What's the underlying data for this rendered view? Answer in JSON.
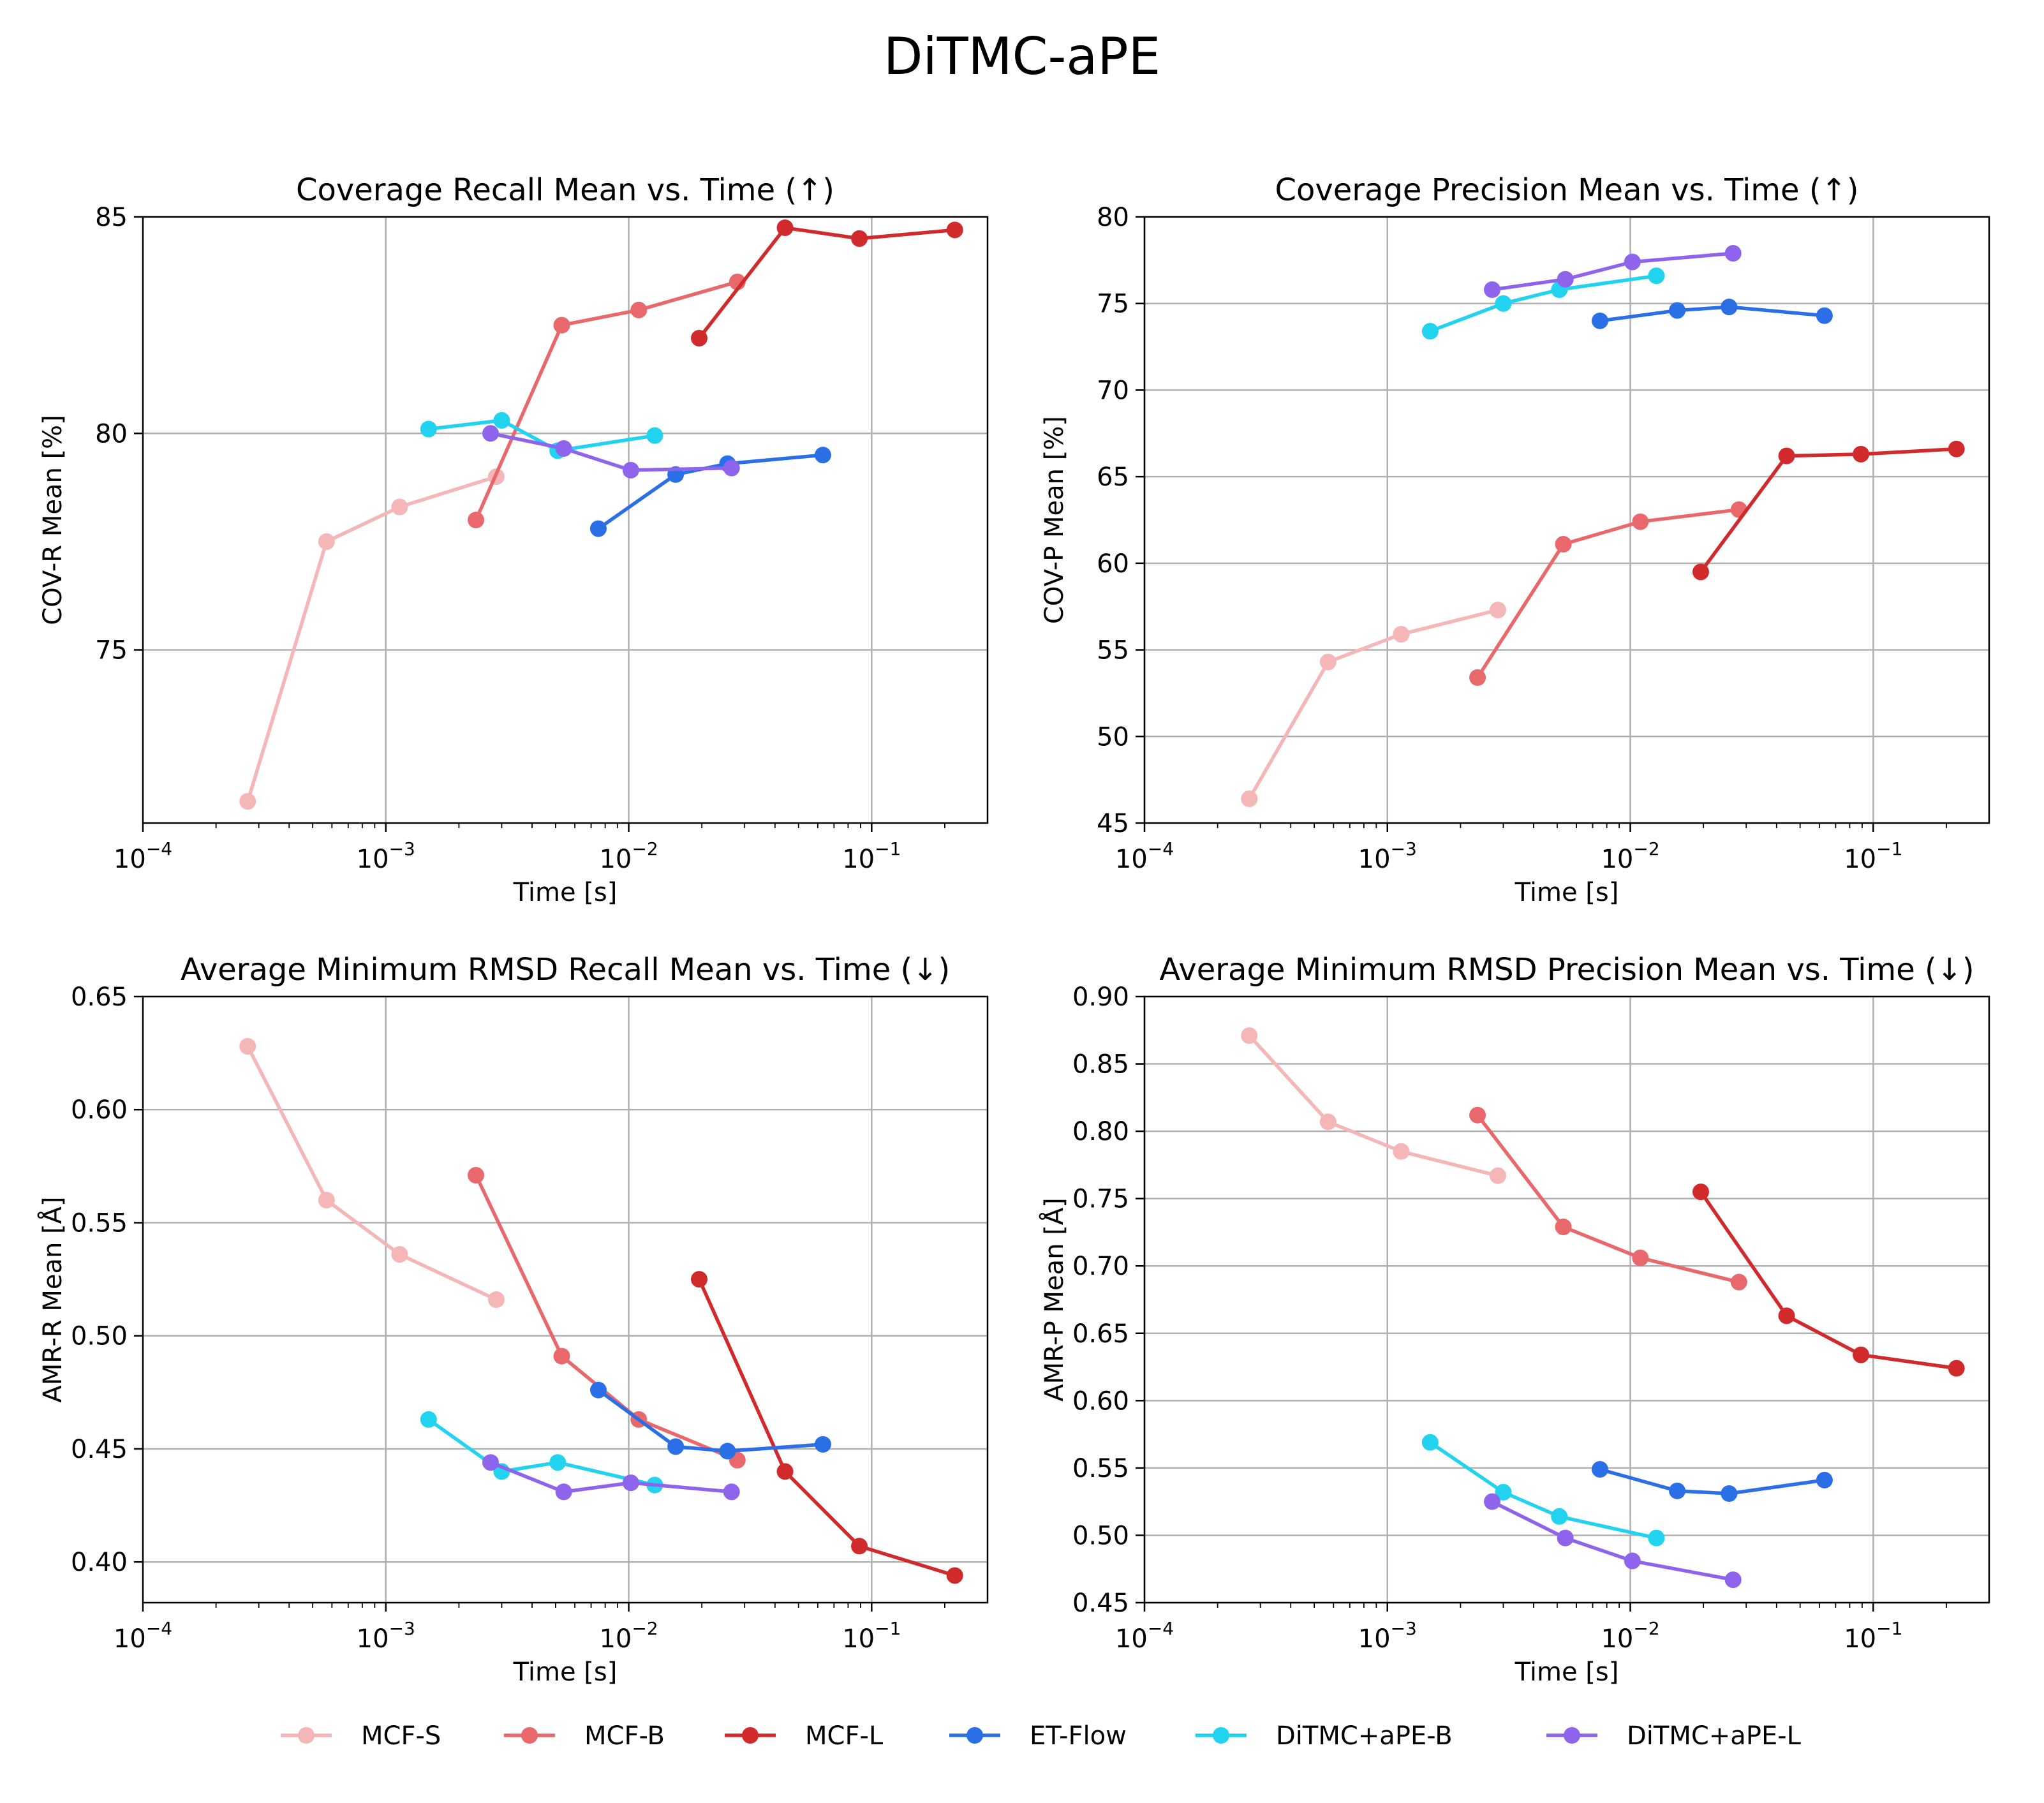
{
  "figure": {
    "title": "DiTMC-aPE"
  },
  "colors": {
    "series": [
      "#f4b6b6",
      "#e8686c",
      "#d12a2c",
      "#2a6fe6",
      "#22d3f0",
      "#8f64ec"
    ],
    "grid": "#b0b0b0",
    "axis": "#000000"
  },
  "legend": {
    "position": "bottom-center",
    "entries": [
      "MCF-S",
      "MCF-B",
      "MCF-L",
      "ET-Flow",
      "DiTMC+aPE-B",
      "DiTMC+aPE-L"
    ]
  },
  "chart_data": [
    {
      "type": "line",
      "title": "Coverage Recall Mean vs. Time (↑)",
      "xlabel": "Time [s]",
      "ylabel": "COV-R Mean [%]",
      "xscale": "log",
      "xlim": [
        0.0001,
        0.3
      ],
      "ylim": [
        71,
        85
      ],
      "yticks": [
        75,
        80,
        85
      ],
      "ytick_labels": [
        "75",
        "80",
        "85"
      ],
      "xtick_base": "10",
      "xtick_exponents": [
        "−4",
        "−3",
        "−2",
        "−1"
      ],
      "grid": true,
      "series": [
        {
          "name": "MCF-S",
          "x": [
            0.00027,
            0.00057,
            0.00114,
            0.00285
          ],
          "y": [
            71.5,
            77.5,
            78.3,
            79.0
          ]
        },
        {
          "name": "MCF-B",
          "x": [
            0.00235,
            0.0053,
            0.011,
            0.028
          ],
          "y": [
            78.0,
            82.5,
            82.85,
            83.5
          ]
        },
        {
          "name": "MCF-L",
          "x": [
            0.0195,
            0.044,
            0.089,
            0.22
          ],
          "y": [
            82.2,
            84.75,
            84.5,
            84.7
          ]
        },
        {
          "name": "ET-Flow",
          "x": [
            0.0075,
            0.0156,
            0.0255,
            0.063
          ],
          "y": [
            77.8,
            79.05,
            79.3,
            79.5
          ]
        },
        {
          "name": "DiTMC+aPE-B",
          "x": [
            0.0015,
            0.003,
            0.0051,
            0.0128
          ],
          "y": [
            80.1,
            80.3,
            79.6,
            79.95
          ]
        },
        {
          "name": "DiTMC+aPE-L",
          "x": [
            0.0027,
            0.0054,
            0.0102,
            0.0265
          ],
          "y": [
            80.0,
            79.65,
            79.15,
            79.2
          ]
        }
      ]
    },
    {
      "type": "line",
      "title": "Coverage Precision Mean vs. Time (↑)",
      "xlabel": "Time [s]",
      "ylabel": "COV-P Mean [%]",
      "xscale": "log",
      "xlim": [
        0.0001,
        0.3
      ],
      "ylim": [
        45,
        80
      ],
      "yticks": [
        45,
        50,
        55,
        60,
        65,
        70,
        75,
        80
      ],
      "ytick_labels": [
        "45",
        "50",
        "55",
        "60",
        "65",
        "70",
        "75",
        "80"
      ],
      "xtick_base": "10",
      "xtick_exponents": [
        "−4",
        "−3",
        "−2",
        "−1"
      ],
      "grid": true,
      "series": [
        {
          "name": "MCF-S",
          "x": [
            0.00027,
            0.00057,
            0.00114,
            0.00285
          ],
          "y": [
            46.4,
            54.3,
            55.9,
            57.3
          ]
        },
        {
          "name": "MCF-B",
          "x": [
            0.00235,
            0.0053,
            0.011,
            0.028
          ],
          "y": [
            53.4,
            61.1,
            62.4,
            63.1
          ]
        },
        {
          "name": "MCF-L",
          "x": [
            0.0195,
            0.044,
            0.089,
            0.22
          ],
          "y": [
            59.5,
            66.2,
            66.3,
            66.6
          ]
        },
        {
          "name": "ET-Flow",
          "x": [
            0.0075,
            0.0156,
            0.0255,
            0.063
          ],
          "y": [
            74.0,
            74.6,
            74.8,
            74.3
          ]
        },
        {
          "name": "DiTMC+aPE-B",
          "x": [
            0.0015,
            0.003,
            0.0051,
            0.0128
          ],
          "y": [
            73.4,
            75.0,
            75.8,
            76.6
          ]
        },
        {
          "name": "DiTMC+aPE-L",
          "x": [
            0.0027,
            0.0054,
            0.0102,
            0.0265
          ],
          "y": [
            75.8,
            76.4,
            77.4,
            77.9
          ]
        }
      ]
    },
    {
      "type": "line",
      "title": "Average Minimum RMSD Recall Mean vs. Time (↓)",
      "xlabel": "Time [s]",
      "ylabel": "AMR-R Mean [Å]",
      "xscale": "log",
      "xlim": [
        0.0001,
        0.3
      ],
      "ylim": [
        0.382,
        0.65
      ],
      "yticks": [
        0.4,
        0.45,
        0.5,
        0.55,
        0.6,
        0.65
      ],
      "ytick_labels": [
        "0.40",
        "0.45",
        "0.50",
        "0.55",
        "0.60",
        "0.65"
      ],
      "xtick_base": "10",
      "xtick_exponents": [
        "−4",
        "−3",
        "−2",
        "−1"
      ],
      "grid": true,
      "series": [
        {
          "name": "MCF-S",
          "x": [
            0.00027,
            0.00057,
            0.00114,
            0.00285
          ],
          "y": [
            0.628,
            0.56,
            0.536,
            0.516
          ]
        },
        {
          "name": "MCF-B",
          "x": [
            0.00235,
            0.0053,
            0.011,
            0.028
          ],
          "y": [
            0.571,
            0.491,
            0.463,
            0.445
          ]
        },
        {
          "name": "MCF-L",
          "x": [
            0.0195,
            0.044,
            0.089,
            0.22
          ],
          "y": [
            0.525,
            0.44,
            0.407,
            0.394
          ]
        },
        {
          "name": "ET-Flow",
          "x": [
            0.0075,
            0.0156,
            0.0255,
            0.063
          ],
          "y": [
            0.476,
            0.451,
            0.449,
            0.452
          ]
        },
        {
          "name": "DiTMC+aPE-B",
          "x": [
            0.0015,
            0.003,
            0.0051,
            0.0128
          ],
          "y": [
            0.463,
            0.44,
            0.444,
            0.434
          ]
        },
        {
          "name": "DiTMC+aPE-L",
          "x": [
            0.0027,
            0.0054,
            0.0102,
            0.0265
          ],
          "y": [
            0.444,
            0.431,
            0.435,
            0.431
          ]
        }
      ]
    },
    {
      "type": "line",
      "title": "Average Minimum RMSD Precision Mean vs. Time (↓)",
      "xlabel": "Time [s]",
      "ylabel": "AMR-P Mean [Å]",
      "xscale": "log",
      "xlim": [
        0.0001,
        0.3
      ],
      "ylim": [
        0.45,
        0.9
      ],
      "yticks": [
        0.45,
        0.5,
        0.55,
        0.6,
        0.65,
        0.7,
        0.75,
        0.8,
        0.85,
        0.9
      ],
      "ytick_labels": [
        "0.45",
        "0.50",
        "0.55",
        "0.60",
        "0.65",
        "0.70",
        "0.75",
        "0.80",
        "0.85",
        "0.90"
      ],
      "xtick_base": "10",
      "xtick_exponents": [
        "−4",
        "−3",
        "−2",
        "−1"
      ],
      "grid": true,
      "series": [
        {
          "name": "MCF-S",
          "x": [
            0.00027,
            0.00057,
            0.00114,
            0.00285
          ],
          "y": [
            0.871,
            0.807,
            0.785,
            0.767
          ]
        },
        {
          "name": "MCF-B",
          "x": [
            0.00235,
            0.0053,
            0.011,
            0.028
          ],
          "y": [
            0.812,
            0.729,
            0.706,
            0.688
          ]
        },
        {
          "name": "MCF-L",
          "x": [
            0.0195,
            0.044,
            0.089,
            0.22
          ],
          "y": [
            0.755,
            0.663,
            0.634,
            0.624
          ]
        },
        {
          "name": "ET-Flow",
          "x": [
            0.0075,
            0.0156,
            0.0255,
            0.063
          ],
          "y": [
            0.549,
            0.533,
            0.531,
            0.541
          ]
        },
        {
          "name": "DiTMC+aPE-B",
          "x": [
            0.0015,
            0.003,
            0.0051,
            0.0128
          ],
          "y": [
            0.569,
            0.532,
            0.514,
            0.498
          ]
        },
        {
          "name": "DiTMC+aPE-L",
          "x": [
            0.0027,
            0.0054,
            0.0102,
            0.0265
          ],
          "y": [
            0.525,
            0.498,
            0.481,
            0.467
          ]
        }
      ]
    }
  ]
}
